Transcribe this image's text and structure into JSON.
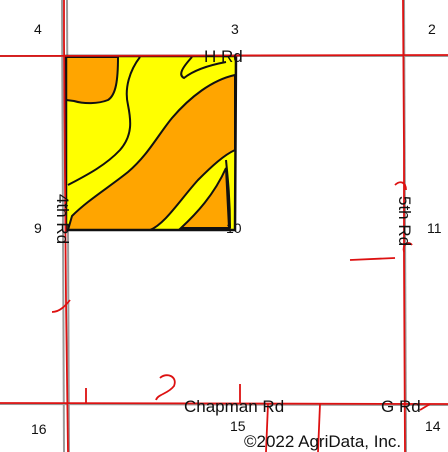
{
  "map": {
    "section_numbers": {
      "nw": "4",
      "n": "3",
      "ne": "2",
      "w": "9",
      "c": "10",
      "e": "11",
      "sw": "16",
      "s": "15",
      "se": "14"
    },
    "roads": {
      "north": "H Rd",
      "west": "4th Rd",
      "east": "5th Rd",
      "south_west": "Chapman Rd",
      "south_east": "G Rd"
    },
    "copyright": "©2022 AgriData, Inc.",
    "colors": {
      "zone_light": "#ffff00",
      "zone_dark": "#ffa500",
      "road_line": "#dd1111",
      "section_line": "#999999",
      "boundary": "#111111"
    }
  }
}
